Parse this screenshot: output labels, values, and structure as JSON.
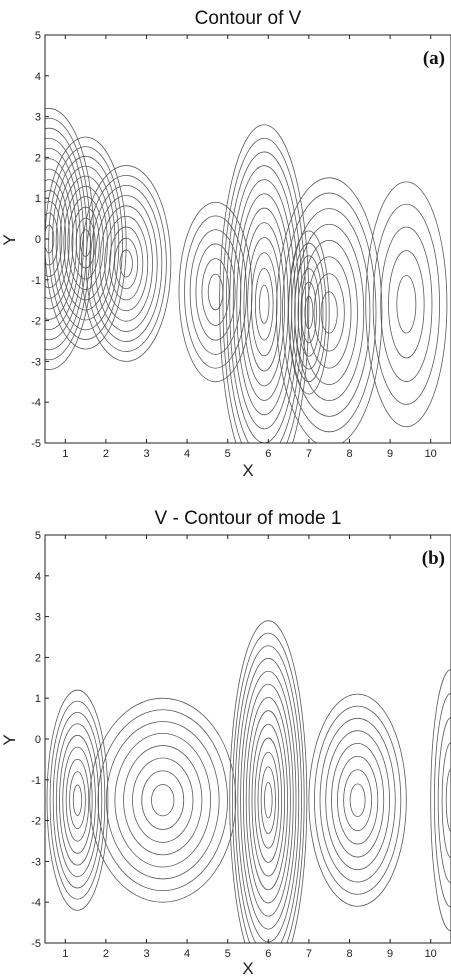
{
  "chart_data": [
    {
      "type": "contour",
      "title": "Contour of V",
      "panel_label": "(a)",
      "xlabel": "X",
      "ylabel": "Y",
      "xlim": [
        0.5,
        10.5
      ],
      "ylim": [
        -5,
        5
      ],
      "x_ticks": [
        "1",
        "2",
        "3",
        "4",
        "5",
        "6",
        "7",
        "8",
        "9",
        "10"
      ],
      "y_ticks": [
        "5",
        "4",
        "3",
        "2",
        "1",
        "0",
        "-1",
        "-2",
        "-3",
        "-4",
        "-5"
      ],
      "line_color": "#5a5a5a",
      "centers": [
        {
          "x": 0.6,
          "y": 0.0,
          "levels": 12,
          "rx_max": 1.1,
          "ry_max": 3.2
        },
        {
          "x": 1.5,
          "y": -0.1,
          "levels": 10,
          "rx_max": 1.0,
          "ry_max": 2.6
        },
        {
          "x": 2.5,
          "y": -0.6,
          "levels": 9,
          "rx_max": 1.1,
          "ry_max": 2.4
        },
        {
          "x": 4.7,
          "y": -1.3,
          "levels": 6,
          "rx_max": 0.9,
          "ry_max": 2.2
        },
        {
          "x": 5.9,
          "y": -1.6,
          "levels": 12,
          "rx_max": 1.1,
          "ry_max": 4.4
        },
        {
          "x": 7.0,
          "y": -1.8,
          "levels": 6,
          "rx_max": 0.5,
          "ry_max": 2.0
        },
        {
          "x": 7.5,
          "y": -1.8,
          "levels": 8,
          "rx_max": 1.3,
          "ry_max": 3.3
        },
        {
          "x": 9.4,
          "y": -1.6,
          "levels": 5,
          "rx_max": 1.0,
          "ry_max": 3.0
        }
      ]
    },
    {
      "type": "contour",
      "title": "V - Contour of mode 1",
      "panel_label": "(b)",
      "xlabel": "X",
      "ylabel": "Y",
      "xlim": [
        0.5,
        10.5
      ],
      "ylim": [
        -5,
        5
      ],
      "x_ticks": [
        "1",
        "2",
        "3",
        "4",
        "5",
        "6",
        "7",
        "8",
        "9",
        "10"
      ],
      "y_ticks": [
        "5",
        "4",
        "3",
        "2",
        "1",
        "0",
        "-1",
        "-2",
        "-3",
        "-4",
        "-5"
      ],
      "line_color": "#5a5a5a",
      "centers": [
        {
          "x": 1.3,
          "y": -1.5,
          "levels": 9,
          "rx_max": 0.75,
          "ry_max": 2.7
        },
        {
          "x": 3.4,
          "y": -1.5,
          "levels": 8,
          "rx_max": 1.8,
          "ry_max": 2.5
        },
        {
          "x": 6.0,
          "y": -1.5,
          "levels": 13,
          "rx_max": 0.95,
          "ry_max": 4.4
        },
        {
          "x": 8.2,
          "y": -1.5,
          "levels": 8,
          "rx_max": 1.2,
          "ry_max": 2.6
        },
        {
          "x": 10.5,
          "y": -1.5,
          "levels": 5,
          "rx_max": 0.5,
          "ry_max": 3.2
        }
      ]
    }
  ]
}
